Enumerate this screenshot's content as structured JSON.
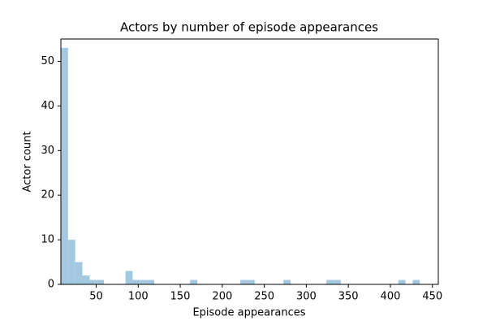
{
  "chart_data": {
    "type": "histogram",
    "title": "Actors by number of episode appearances",
    "x_label": "Episode appearances",
    "y_label": "Actor count",
    "color": "#a5c8e1",
    "bins": [
      8,
      16.54,
      25.08,
      33.62,
      42.16,
      50.7,
      59.24,
      67.78,
      76.32,
      84.86,
      93.4,
      101.94,
      110.48,
      119.02,
      127.56,
      136.1,
      144.64,
      153.18,
      161.72,
      170.26,
      178.8,
      187.34,
      195.88,
      204.42,
      212.96,
      221.5,
      230.04,
      238.58,
      247.12,
      255.66,
      264.2,
      272.74,
      281.28,
      289.82,
      298.36,
      306.9,
      315.44,
      323.98,
      332.52,
      341.06,
      349.6,
      358.14,
      366.68,
      375.22,
      383.76,
      392.3,
      400.84,
      409.38,
      417.92,
      426.46,
      435
    ],
    "values": [
      53,
      10,
      5,
      2,
      1,
      1,
      0,
      0,
      0,
      3,
      1,
      1,
      1,
      0,
      0,
      0,
      0,
      0,
      1,
      0,
      0,
      0,
      0,
      0,
      0,
      1,
      1,
      0,
      0,
      0,
      0,
      1,
      0,
      0,
      0,
      0,
      0,
      1,
      1,
      0,
      0,
      0,
      0,
      0,
      0,
      0,
      0,
      1,
      0,
      1
    ],
    "xlim": [
      8,
      457
    ],
    "ylim": [
      0,
      55
    ],
    "xticks": [
      50,
      100,
      150,
      200,
      250,
      300,
      350,
      400,
      450
    ],
    "yticks": [
      0,
      10,
      20,
      30,
      40,
      50
    ]
  }
}
